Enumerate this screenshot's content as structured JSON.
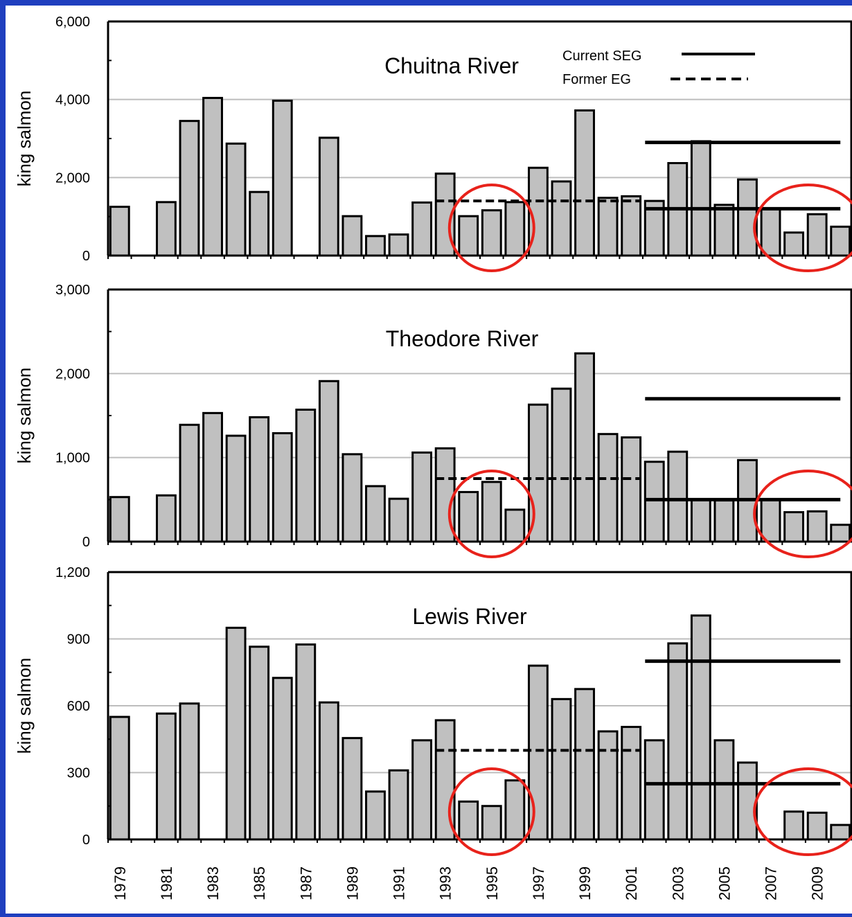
{
  "frame_color": "#1f3fbf",
  "legend": {
    "current_label": "Current SEG",
    "former_label": "Former EG"
  },
  "x_tick_labels": [
    "1979",
    "1981",
    "1983",
    "1985",
    "1987",
    "1989",
    "1991",
    "1993",
    "1995",
    "1997",
    "1999",
    "2001",
    "2003",
    "2005",
    "2007",
    "2009"
  ],
  "colors": {
    "bar_fill": "#c0c0c0",
    "bar_stroke": "#000000",
    "grid": "#bdbdbd",
    "circle": "#e8221b",
    "goal_line": "#000000"
  },
  "chart_data": [
    {
      "type": "bar",
      "title": "Chuitna River",
      "ylabel": "king salmon",
      "ylim": [
        0,
        6000
      ],
      "yticks": [
        0,
        2000,
        4000,
        6000
      ],
      "ytick_labels": [
        "0",
        "2,000",
        "4,000",
        "6,000"
      ],
      "grid": true,
      "legend_position": "top-right",
      "categories": [
        1979,
        1980,
        1981,
        1982,
        1983,
        1984,
        1985,
        1986,
        1987,
        1988,
        1989,
        1990,
        1991,
        1992,
        1993,
        1994,
        1995,
        1996,
        1997,
        1998,
        1999,
        2000,
        2001,
        2002,
        2003,
        2004,
        2005,
        2006,
        2007,
        2008,
        2009,
        2010
      ],
      "values": [
        1250,
        null,
        1370,
        3450,
        4040,
        2870,
        1630,
        3970,
        null,
        3020,
        1010,
        500,
        540,
        1360,
        2100,
        1010,
        1160,
        1370,
        2250,
        1900,
        3720,
        1480,
        1520,
        1400,
        2370,
        2930,
        1300,
        1950,
        1200,
        590,
        1060,
        740
      ],
      "former_eg": {
        "value": 1400,
        "x_start": 1993,
        "x_end": 2001
      },
      "current_seg": {
        "upper": 2900,
        "lower": 1200,
        "x_start": 2002,
        "x_end": 2010
      },
      "circled_years": [
        [
          1994,
          1996
        ],
        [
          2007,
          2010
        ]
      ]
    },
    {
      "type": "bar",
      "title": "Theodore River",
      "ylabel": "king salmon",
      "ylim": [
        0,
        3000
      ],
      "yticks": [
        0,
        1000,
        2000,
        3000
      ],
      "ytick_labels": [
        "0",
        "1,000",
        "2,000",
        "3,000"
      ],
      "grid": true,
      "categories": [
        1979,
        1980,
        1981,
        1982,
        1983,
        1984,
        1985,
        1986,
        1987,
        1988,
        1989,
        1990,
        1991,
        1992,
        1993,
        1994,
        1995,
        1996,
        1997,
        1998,
        1999,
        2000,
        2001,
        2002,
        2003,
        2004,
        2005,
        2006,
        2007,
        2008,
        2009,
        2010
      ],
      "values": [
        530,
        null,
        550,
        1390,
        1530,
        1260,
        1480,
        1290,
        1570,
        1910,
        1040,
        660,
        510,
        1060,
        1110,
        590,
        710,
        380,
        1630,
        1820,
        2240,
        1280,
        1240,
        950,
        1070,
        500,
        490,
        970,
        500,
        350,
        360,
        200
      ],
      "former_eg": {
        "value": 750,
        "x_start": 1993,
        "x_end": 2001
      },
      "current_seg": {
        "upper": 1700,
        "lower": 500,
        "x_start": 2002,
        "x_end": 2010
      },
      "circled_years": [
        [
          1994,
          1996
        ],
        [
          2007,
          2010
        ]
      ]
    },
    {
      "type": "bar",
      "title": "Lewis River",
      "ylabel": "king salmon",
      "ylim": [
        0,
        1200
      ],
      "yticks": [
        0,
        300,
        600,
        900,
        1200
      ],
      "ytick_labels": [
        "0",
        "300",
        "600",
        "900",
        "1,200"
      ],
      "grid": true,
      "categories": [
        1979,
        1980,
        1981,
        1982,
        1983,
        1984,
        1985,
        1986,
        1987,
        1988,
        1989,
        1990,
        1991,
        1992,
        1993,
        1994,
        1995,
        1996,
        1997,
        1998,
        1999,
        2000,
        2001,
        2002,
        2003,
        2004,
        2005,
        2006,
        2007,
        2008,
        2009,
        2010
      ],
      "values": [
        550,
        null,
        565,
        610,
        null,
        950,
        865,
        725,
        875,
        615,
        455,
        215,
        310,
        445,
        535,
        170,
        150,
        265,
        780,
        630,
        675,
        485,
        505,
        445,
        880,
        1005,
        445,
        345,
        null,
        125,
        120,
        65
      ],
      "former_eg": {
        "value": 400,
        "x_start": 1993,
        "x_end": 2001
      },
      "current_seg": {
        "upper": 800,
        "lower": 250,
        "x_start": 2002,
        "x_end": 2010
      },
      "circled_years": [
        [
          1994,
          1996
        ],
        [
          2007,
          2010
        ]
      ]
    }
  ]
}
